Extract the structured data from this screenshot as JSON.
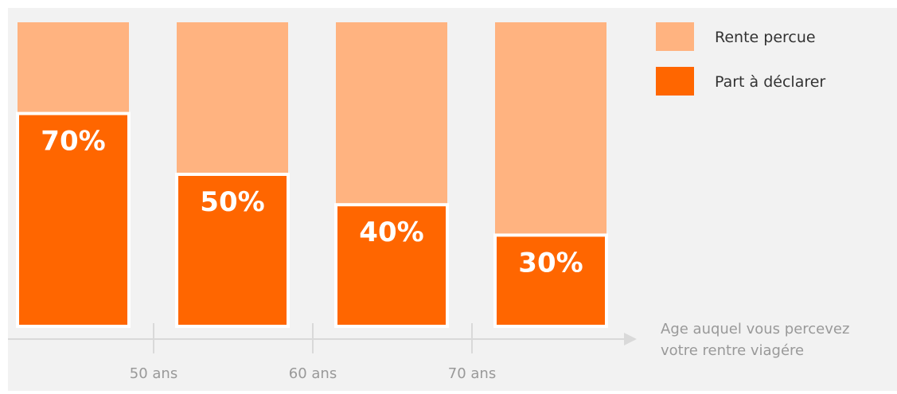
{
  "chart_data": {
    "type": "bar",
    "stacked": true,
    "unit": "%",
    "categories": [
      "",
      "",
      "",
      ""
    ],
    "series": [
      {
        "name": "Part à déclarer",
        "values": [
          70,
          50,
          40,
          30
        ],
        "color": "#ff6600"
      },
      {
        "name": "Rente percue",
        "values": [
          30,
          50,
          60,
          70
        ],
        "color": "#ffb380"
      }
    ],
    "data_labels": [
      "70%",
      "50%",
      "40%",
      "30%"
    ],
    "x_ticks": [
      "50 ans",
      "60 ans",
      "70 ans"
    ],
    "xlabel_line1": "Age auquel vous percevez",
    "xlabel_line2": "votre rentre viagére",
    "ylim": [
      0,
      100
    ],
    "legend_position": "top-right",
    "grid": false,
    "colors": {
      "background": "#f2f2f2",
      "axis": "#d9d9d9",
      "tick_text": "#999999",
      "label_text": "#999999",
      "legend_text": "#333333",
      "bar_label": "#ffffff"
    }
  }
}
